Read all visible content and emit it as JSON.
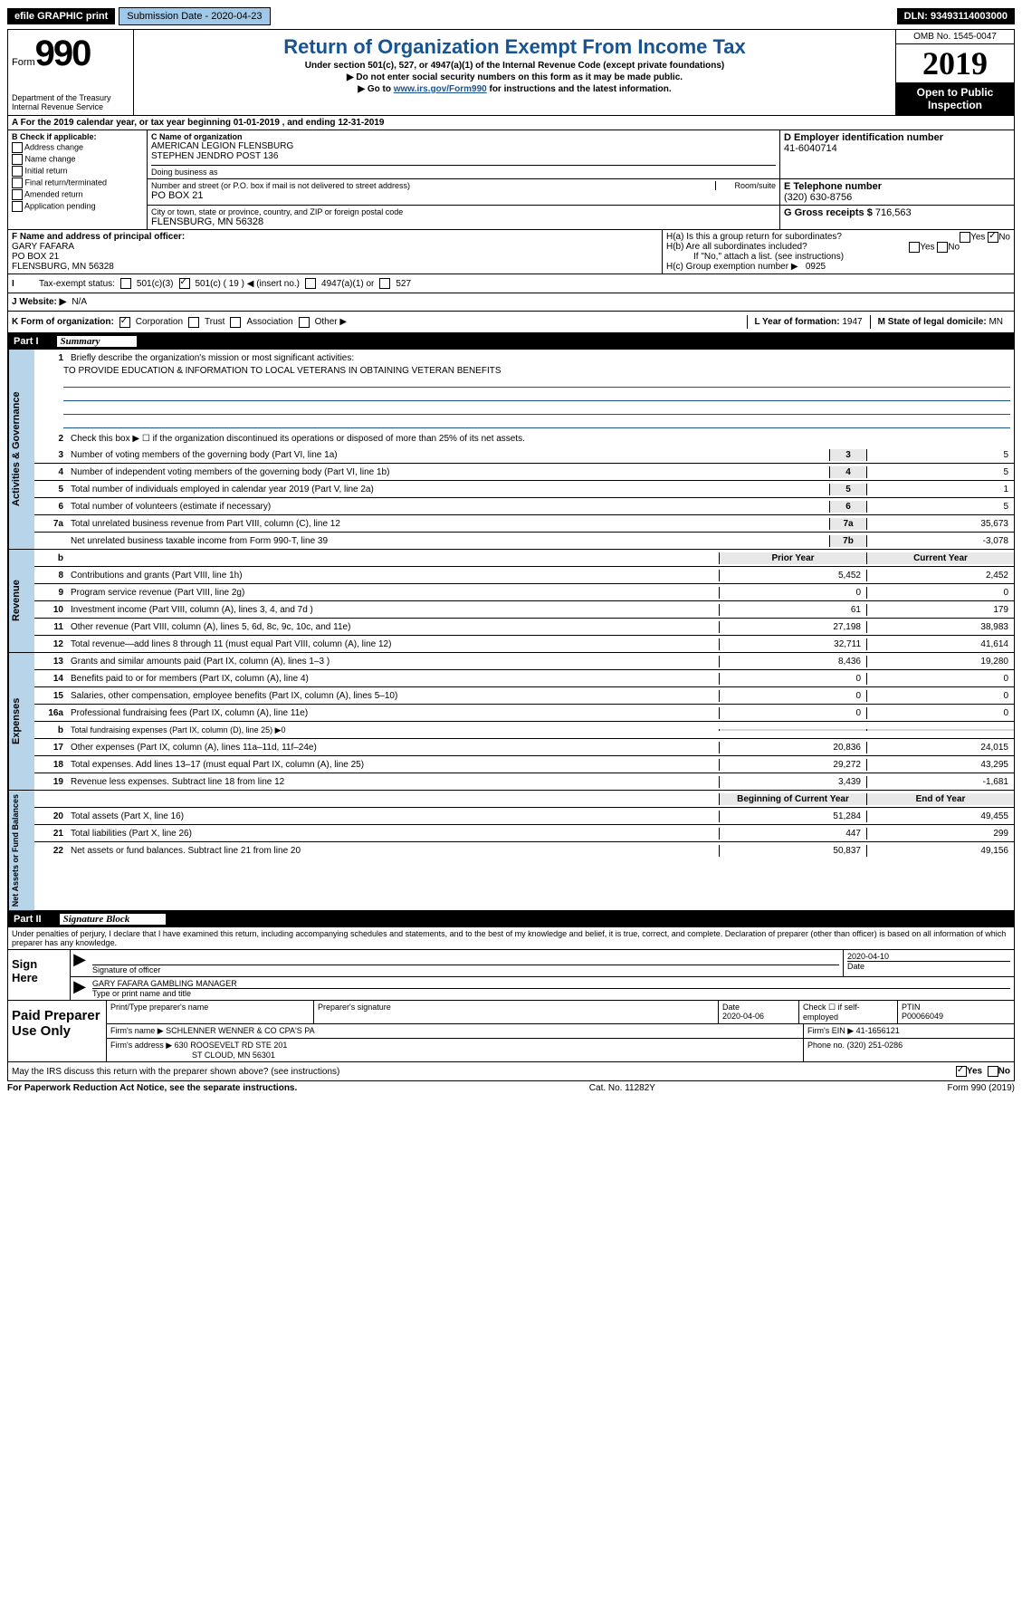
{
  "topbar": {
    "efile": "efile GRAPHIC print",
    "subdate_label": "Submission Date - 2020-04-23",
    "dln": "DLN: 93493114003000"
  },
  "header": {
    "form_prefix": "Form",
    "form_num": "990",
    "dept": "Department of the Treasury\nInternal Revenue Service",
    "title": "Return of Organization Exempt From Income Tax",
    "sub1": "Under section 501(c), 527, or 4947(a)(1) of the Internal Revenue Code (except private foundations)",
    "sub2": "▶ Do not enter social security numbers on this form as it may be made public.",
    "sub3_pre": "▶ Go to ",
    "sub3_link": "www.irs.gov/Form990",
    "sub3_post": " for instructions and the latest information.",
    "omb": "OMB No. 1545-0047",
    "year": "2019",
    "open": "Open to Public Inspection"
  },
  "row_a": "A For the 2019 calendar year, or tax year beginning 01-01-2019    , and ending 12-31-2019",
  "box_b": {
    "label": "B Check if applicable:",
    "addr": "Address change",
    "name": "Name change",
    "initial": "Initial return",
    "final": "Final return/terminated",
    "amended": "Amended return",
    "app": "Application pending"
  },
  "box_c": {
    "name_label": "C Name of organization",
    "name": "AMERICAN LEGION FLENSBURG\nSTEPHEN JENDRO POST 136",
    "dba_label": "Doing business as",
    "addr_label": "Number and street (or P.O. box if mail is not delivered to street address)",
    "addr": "PO BOX 21",
    "room_label": "Room/suite",
    "city_label": "City or town, state or province, country, and ZIP or foreign postal code",
    "city": "FLENSBURG, MN  56328"
  },
  "box_d": {
    "label": "D Employer identification number",
    "value": "41-6040714"
  },
  "box_e": {
    "label": "E Telephone number",
    "value": "(320) 630-8756"
  },
  "box_g": {
    "label": "G Gross receipts $",
    "value": "716,563"
  },
  "box_f": {
    "label": "F Name and address of principal officer:",
    "name": "GARY FAFARA",
    "addr": "PO BOX 21",
    "city": "FLENSBURG, MN  56328"
  },
  "box_h": {
    "ha": "H(a)  Is this a group return for subordinates?",
    "hb": "H(b)  Are all subordinates included?",
    "hb_note": "If \"No,\" attach a list. (see instructions)",
    "hc": "H(c)  Group exemption number ▶",
    "hc_val": "0925",
    "yes": "Yes",
    "no": "No"
  },
  "row_i": {
    "label": "Tax-exempt status:",
    "c3": "501(c)(3)",
    "c": "501(c) ( 19 ) ◀ (insert no.)",
    "a1": "4947(a)(1) or",
    "s527": "527"
  },
  "row_j": {
    "label": "J   Website: ▶",
    "value": "N/A"
  },
  "row_k": {
    "label": "K Form of organization:",
    "corp": "Corporation",
    "trust": "Trust",
    "assoc": "Association",
    "other": "Other ▶",
    "l_label": "L Year of formation:",
    "l_val": "1947",
    "m_label": "M State of legal domicile:",
    "m_val": "MN"
  },
  "part1": {
    "label": "Part I",
    "title": "Summary"
  },
  "section_ag": {
    "label": "Activities & Governance",
    "line1": "Briefly describe the organization's mission or most significant activities:",
    "line1_val": "TO PROVIDE EDUCATION & INFORMATION TO LOCAL VETERANS IN OBTAINING VETERAN BENEFITS",
    "line2": "Check this box ▶ ☐  if the organization discontinued its operations or disposed of more than 25% of its net assets.",
    "line3": "Number of voting members of the governing body (Part VI, line 1a)",
    "line3_val": "5",
    "line4": "Number of independent voting members of the governing body (Part VI, line 1b)",
    "line4_val": "5",
    "line5": "Total number of individuals employed in calendar year 2019 (Part V, line 2a)",
    "line5_val": "1",
    "line6": "Total number of volunteers (estimate if necessary)",
    "line6_val": "5",
    "line7a": "Total unrelated business revenue from Part VIII, column (C), line 12",
    "line7a_val": "35,673",
    "line7b": "Net unrelated business taxable income from Form 990-T, line 39",
    "line7b_val": "-3,078"
  },
  "columns": {
    "prior": "Prior Year",
    "current": "Current Year",
    "begin": "Beginning of Current Year",
    "end": "End of Year"
  },
  "section_rev": {
    "label": "Revenue",
    "rows": [
      {
        "n": "8",
        "d": "Contributions and grants (Part VIII, line 1h)",
        "p": "5,452",
        "c": "2,452"
      },
      {
        "n": "9",
        "d": "Program service revenue (Part VIII, line 2g)",
        "p": "0",
        "c": "0"
      },
      {
        "n": "10",
        "d": "Investment income (Part VIII, column (A), lines 3, 4, and 7d )",
        "p": "61",
        "c": "179"
      },
      {
        "n": "11",
        "d": "Other revenue (Part VIII, column (A), lines 5, 6d, 8c, 9c, 10c, and 11e)",
        "p": "27,198",
        "c": "38,983"
      },
      {
        "n": "12",
        "d": "Total revenue—add lines 8 through 11 (must equal Part VIII, column (A), line 12)",
        "p": "32,711",
        "c": "41,614"
      }
    ]
  },
  "section_exp": {
    "label": "Expenses",
    "rows": [
      {
        "n": "13",
        "d": "Grants and similar amounts paid (Part IX, column (A), lines 1–3 )",
        "p": "8,436",
        "c": "19,280"
      },
      {
        "n": "14",
        "d": "Benefits paid to or for members (Part IX, column (A), line 4)",
        "p": "0",
        "c": "0"
      },
      {
        "n": "15",
        "d": "Salaries, other compensation, employee benefits (Part IX, column (A), lines 5–10)",
        "p": "0",
        "c": "0"
      },
      {
        "n": "16a",
        "d": "Professional fundraising fees (Part IX, column (A), line 11e)",
        "p": "0",
        "c": "0"
      }
    ],
    "line_b": "Total fundraising expenses (Part IX, column (D), line 25) ▶0",
    "rows2": [
      {
        "n": "17",
        "d": "Other expenses (Part IX, column (A), lines 11a–11d, 11f–24e)",
        "p": "20,836",
        "c": "24,015"
      },
      {
        "n": "18",
        "d": "Total expenses. Add lines 13–17 (must equal Part IX, column (A), line 25)",
        "p": "29,272",
        "c": "43,295"
      },
      {
        "n": "19",
        "d": "Revenue less expenses. Subtract line 18 from line 12",
        "p": "3,439",
        "c": "-1,681"
      }
    ]
  },
  "section_net": {
    "label": "Net Assets or Fund Balances",
    "rows": [
      {
        "n": "20",
        "d": "Total assets (Part X, line 16)",
        "p": "51,284",
        "c": "49,455"
      },
      {
        "n": "21",
        "d": "Total liabilities (Part X, line 26)",
        "p": "447",
        "c": "299"
      },
      {
        "n": "22",
        "d": "Net assets or fund balances. Subtract line 21 from line 20",
        "p": "50,837",
        "c": "49,156"
      }
    ]
  },
  "part2": {
    "label": "Part II",
    "title": "Signature Block"
  },
  "penalties": "Under penalties of perjury, I declare that I have examined this return, including accompanying schedules and statements, and to the best of my knowledge and belief, it is true, correct, and complete. Declaration of preparer (other than officer) is based on all information of which preparer has any knowledge.",
  "sign": {
    "left": "Sign Here",
    "sig_label": "Signature of officer",
    "sig_date": "2020-04-10",
    "date_label": "Date",
    "name": "GARY FAFARA  GAMBLING MANAGER",
    "name_label": "Type or print name and title"
  },
  "prep": {
    "left": "Paid Preparer Use Only",
    "h1": "Print/Type preparer's name",
    "h2": "Preparer's signature",
    "h3": "Date",
    "h3_val": "2020-04-06",
    "h4": "Check ☐ if self-employed",
    "h5": "PTIN",
    "h5_val": "P00066049",
    "firm_label": "Firm's name     ▶",
    "firm": "SCHLENNER WENNER & CO CPA'S PA",
    "ein_label": "Firm's EIN ▶",
    "ein": "41-1656121",
    "addr_label": "Firm's address ▶",
    "addr": "630 ROOSEVELT RD STE 201",
    "addr2": "ST CLOUD, MN  56301",
    "phone_label": "Phone no.",
    "phone": "(320) 251-0286"
  },
  "discuss": {
    "text": "May the IRS discuss this return with the preparer shown above? (see instructions)",
    "yes": "Yes",
    "no": "No"
  },
  "footer": {
    "pra": "For Paperwork Reduction Act Notice, see the separate instructions.",
    "cat": "Cat. No. 11282Y",
    "form": "Form 990 (2019)"
  }
}
